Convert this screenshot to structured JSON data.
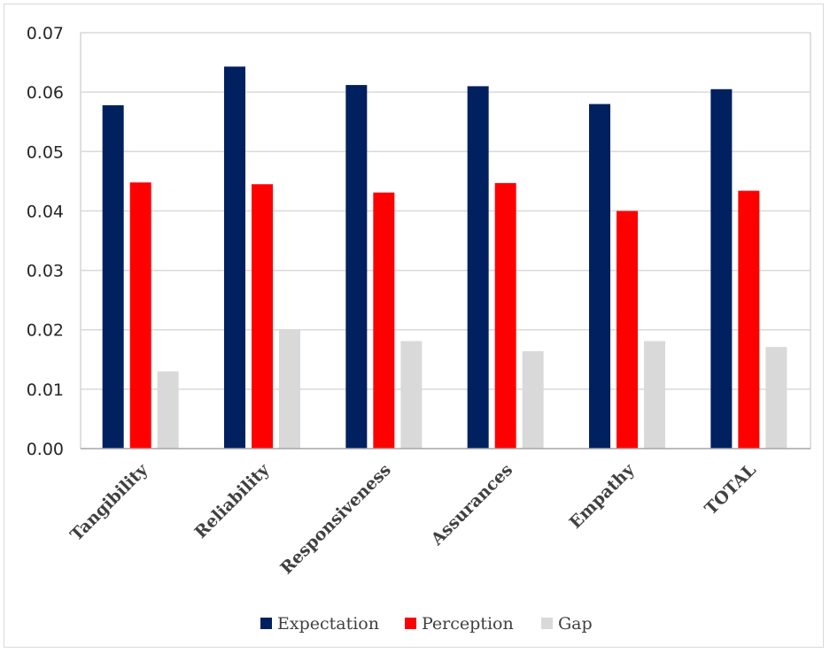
{
  "chart_data": {
    "type": "bar",
    "categories": [
      "Tangibility",
      "Reliability",
      "Responsiveness",
      "Assurances",
      "Empathy",
      "TOTAL"
    ],
    "series": [
      {
        "name": "Expectation",
        "color": "#002060",
        "values": [
          0.0578,
          0.0643,
          0.0612,
          0.061,
          0.058,
          0.0605
        ]
      },
      {
        "name": "Perception",
        "color": "#ff0000",
        "values": [
          0.0448,
          0.0445,
          0.0431,
          0.0447,
          0.04,
          0.0434
        ]
      },
      {
        "name": "Gap",
        "color": "#d9d9d9",
        "values": [
          0.013,
          0.02,
          0.0181,
          0.0164,
          0.0181,
          0.0171
        ]
      }
    ],
    "yticks": [
      "0.00",
      "0.01",
      "0.02",
      "0.03",
      "0.04",
      "0.05",
      "0.06",
      "0.07"
    ],
    "ylim": [
      0,
      0.07
    ],
    "grid": true,
    "legend_position": "bottom",
    "title": "",
    "xlabel": "",
    "ylabel": ""
  }
}
